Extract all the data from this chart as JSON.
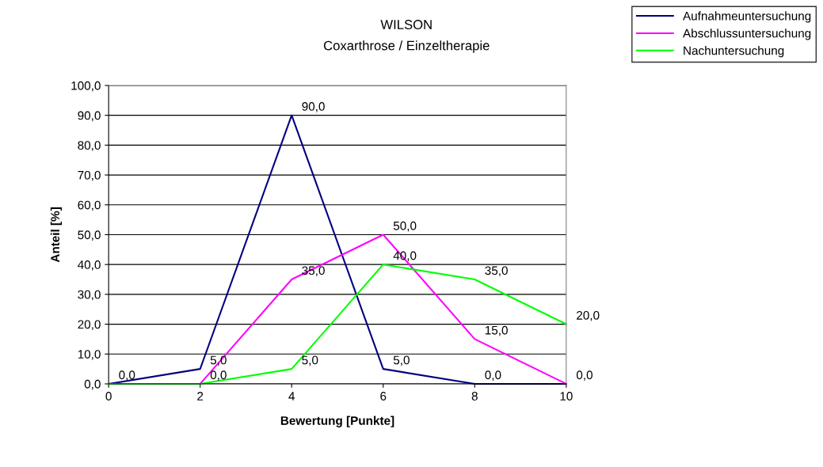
{
  "chart_data": {
    "type": "line",
    "title": "WILSON",
    "subtitle": "Coxarthrose / Einzeltherapie",
    "xlabel": "Bewertung [Punkte]",
    "ylabel": "Anteil [%]",
    "x": [
      0,
      2,
      4,
      6,
      8,
      10
    ],
    "series": [
      {
        "name": "Aufnahmeuntersuchung",
        "color": "#000080",
        "values": [
          0,
          5,
          90,
          5,
          0,
          0
        ],
        "value_labels": [
          null,
          "5,0",
          "90,0",
          "5,0",
          "0,0",
          null
        ]
      },
      {
        "name": "Abschlussuntersuchung",
        "color": "#ff00ff",
        "values": [
          0,
          0,
          35,
          50,
          15,
          0
        ],
        "value_labels": [
          null,
          null,
          "35,0",
          "50,0",
          "15,0",
          "0,0"
        ]
      },
      {
        "name": "Nachuntersuchung",
        "color": "#00ff00",
        "values": [
          0,
          0,
          5,
          40,
          35,
          20
        ],
        "value_labels": [
          "0,0",
          "0,0",
          "5,0",
          "40,0",
          "35,0",
          "20,0"
        ]
      }
    ],
    "xlim": [
      0,
      10
    ],
    "xticks": [
      0,
      2,
      4,
      6,
      8,
      10
    ],
    "ylim": [
      0,
      100
    ],
    "yticks": [
      {
        "value": 0,
        "label": "0,0"
      },
      {
        "value": 10,
        "label": "10,0"
      },
      {
        "value": 20,
        "label": "20,0"
      },
      {
        "value": 30,
        "label": "30,0"
      },
      {
        "value": 40,
        "label": "40,0"
      },
      {
        "value": 50,
        "label": "50,0"
      },
      {
        "value": 60,
        "label": "60,0"
      },
      {
        "value": 70,
        "label": "70,0"
      },
      {
        "value": 80,
        "label": "80,0"
      },
      {
        "value": 90,
        "label": "90,0"
      },
      {
        "value": 100,
        "label": "100,0"
      }
    ],
    "grid": "y",
    "legend": "top right",
    "marker": "none",
    "line_style": "solid"
  }
}
